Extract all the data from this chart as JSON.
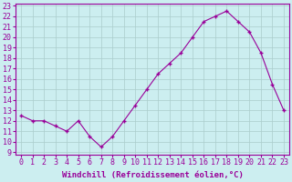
{
  "x": [
    0,
    1,
    2,
    3,
    4,
    5,
    6,
    7,
    8,
    9,
    10,
    11,
    12,
    13,
    14,
    15,
    16,
    17,
    18,
    19,
    20,
    21,
    22,
    23
  ],
  "y": [
    12.5,
    12.0,
    12.0,
    11.5,
    11.0,
    12.0,
    10.5,
    9.5,
    10.5,
    12.0,
    13.5,
    15.0,
    16.5,
    17.5,
    18.5,
    20.0,
    21.5,
    22.0,
    22.5,
    21.5,
    20.5,
    18.5,
    15.5,
    13.0
  ],
  "line_color": "#990099",
  "marker": "P",
  "marker_size": 3,
  "bg_color": "#cceef0",
  "grid_color": "#aacccc",
  "xlabel": "Windchill (Refroidissement éolien,°C)",
  "xlabel_fontsize": 6.5,
  "tick_fontsize": 6.0,
  "ylim": [
    9,
    23
  ],
  "xlim": [
    -0.5,
    23.5
  ],
  "yticks": [
    9,
    10,
    11,
    12,
    13,
    14,
    15,
    16,
    17,
    18,
    19,
    20,
    21,
    22,
    23
  ],
  "xticks": [
    0,
    1,
    2,
    3,
    4,
    5,
    6,
    7,
    8,
    9,
    10,
    11,
    12,
    13,
    14,
    15,
    16,
    17,
    18,
    19,
    20,
    21,
    22,
    23
  ]
}
